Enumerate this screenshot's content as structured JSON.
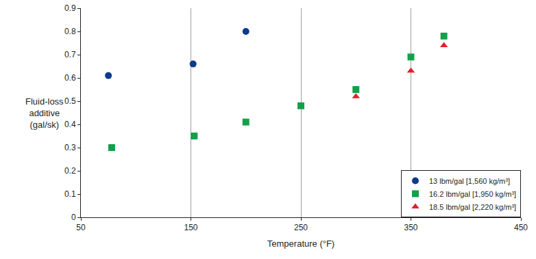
{
  "chart_data": {
    "type": "scatter",
    "x_label": "Temperature (°F)",
    "y_label": "Fluid-loss\nadditive\n(gal/sk)",
    "xlim": [
      50,
      450
    ],
    "xticks": [
      50,
      150,
      250,
      350,
      450
    ],
    "ylim": [
      0,
      0.9
    ],
    "yticks": [
      0,
      0.1,
      0.2,
      0.3,
      0.4,
      0.5,
      0.6,
      0.7,
      0.8,
      0.9
    ],
    "grid": true,
    "legend": "bottom-right",
    "series": [
      {
        "name": "13 lbm/gal [1,560 kg/m³]",
        "color": "#0d3b8c",
        "marker": "circle",
        "x": [
          75,
          152,
          200
        ],
        "values": [
          0.61,
          0.66,
          0.8
        ]
      },
      {
        "name": "16.2 lbm/gal [1,950 kg/m³]",
        "color": "#14a04a",
        "marker": "square",
        "x": [
          78,
          153,
          200,
          250,
          300,
          350,
          380
        ],
        "values": [
          0.3,
          0.35,
          0.41,
          0.48,
          0.55,
          0.69,
          0.78
        ]
      },
      {
        "name": "18.5 lbm/gal [2,220 kg/m³]",
        "color": "#e3202a",
        "marker": "triangle",
        "x": [
          300,
          350,
          380
        ],
        "values": [
          0.52,
          0.63,
          0.74
        ]
      }
    ]
  }
}
